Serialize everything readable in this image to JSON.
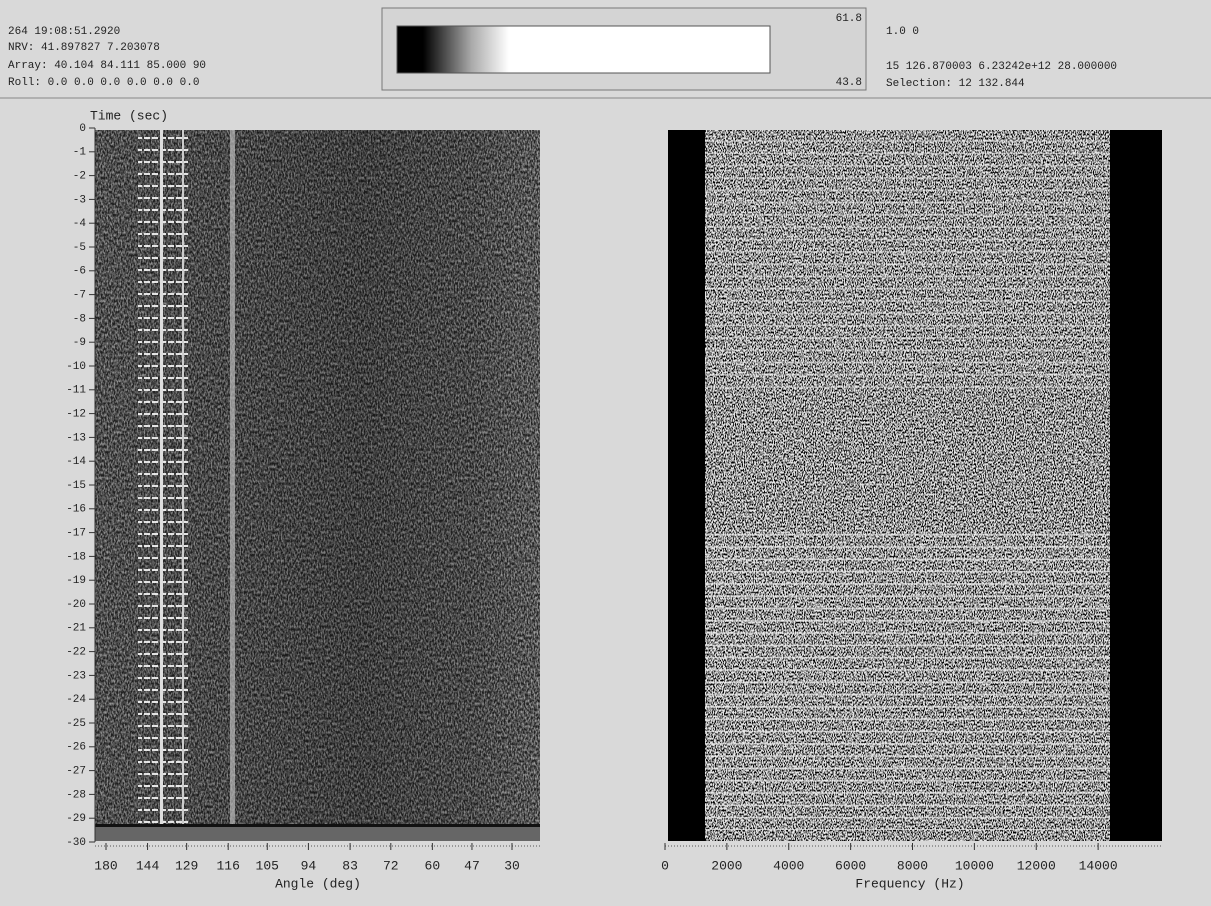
{
  "header": {
    "timestamp": "264 19:08:51.2920",
    "nrv": "NRV: 41.897827 7.203078",
    "array": "Array: 40.104 84.111 85.000 90",
    "roll": "Roll: 0.0 0.0 0.0 0.0 0.0 0.0"
  },
  "colorbar": {
    "max": 61.8,
    "min": 43.8
  },
  "status": {
    "line1": "1.0 0",
    "line2": "15 126.870003 6.23242e+12 28.000000",
    "selection": "Selection: 12  132.844"
  },
  "time_axis": {
    "label": "Time (sec)",
    "ylim": [
      0,
      -30
    ],
    "ticks": [
      0,
      -1,
      -2,
      -3,
      -4,
      -5,
      -6,
      -7,
      -8,
      -9,
      -10,
      -11,
      -12,
      -13,
      -14,
      -15,
      -16,
      -17,
      -18,
      -19,
      -20,
      -21,
      -22,
      -23,
      -24,
      -25,
      -26,
      -27,
      -28,
      -29,
      -30
    ]
  },
  "angle_panel": {
    "xlabel": "Angle (deg)",
    "xticks": [
      180,
      144,
      129,
      116,
      105,
      94,
      83,
      72,
      60,
      47,
      30
    ]
  },
  "frequency_panel": {
    "xlabel": "Frequency (Hz)",
    "xlim": [
      0,
      16000
    ],
    "xticks": [
      0,
      2000,
      4000,
      6000,
      8000,
      10000,
      12000,
      14000
    ]
  }
}
